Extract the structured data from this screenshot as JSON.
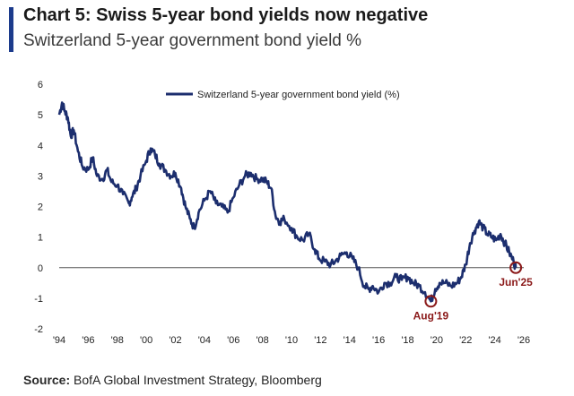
{
  "header": {
    "title": "Chart 5: Swiss 5-year bond yields now negative",
    "subtitle": "Switzerland 5-year government bond yield %"
  },
  "footer": {
    "source_label": "Source:",
    "source_text": " BofA Global Investment Strategy, Bloomberg"
  },
  "colors": {
    "accent": "#1c3b8c",
    "line": "#1c2e6e",
    "annotation": "#8b1a1a"
  },
  "chart_data": {
    "type": "line",
    "title": "Chart 5: Swiss 5-year bond yields now negative",
    "subtitle": "Switzerland 5-year government bond yield %",
    "xlabel": "",
    "ylabel": "",
    "xlim": [
      1994,
      2026
    ],
    "ylim": [
      -2,
      6
    ],
    "x_ticks": [
      "'94",
      "'96",
      "'98",
      "'00",
      "'02",
      "'04",
      "'06",
      "'08",
      "'10",
      "'12",
      "'14",
      "'16",
      "'18",
      "'20",
      "'22",
      "'24",
      "'26"
    ],
    "y_ticks": [
      "6",
      "5",
      "4",
      "3",
      "2",
      "1",
      "0",
      "-1",
      "-2"
    ],
    "legend": {
      "position": "top",
      "entries": [
        "Switzerland 5-year government bond yield (%)"
      ]
    },
    "series": [
      {
        "name": "Switzerland 5-year government bond yield (%)",
        "x": [
          1994.0,
          1994.2,
          1994.4,
          1994.6,
          1994.8,
          1995.0,
          1995.3,
          1995.6,
          1996.0,
          1996.3,
          1996.6,
          1997.0,
          1997.3,
          1997.6,
          1998.0,
          1998.4,
          1998.8,
          1999.0,
          1999.3,
          1999.6,
          2000.0,
          2000.3,
          2000.6,
          2000.9,
          2001.3,
          2001.7,
          2002.0,
          2002.4,
          2002.7,
          2003.0,
          2003.3,
          2003.6,
          2004.0,
          2004.4,
          2004.8,
          2005.2,
          2005.6,
          2006.0,
          2006.4,
          2006.8,
          2007.2,
          2007.6,
          2008.0,
          2008.3,
          2008.6,
          2008.9,
          2009.2,
          2009.5,
          2010.0,
          2010.4,
          2010.8,
          2011.2,
          2011.6,
          2011.9,
          2012.3,
          2012.7,
          2013.0,
          2013.4,
          2013.8,
          2014.2,
          2014.6,
          2015.0,
          2015.3,
          2015.6,
          2016.0,
          2016.4,
          2016.8,
          2017.2,
          2017.6,
          2018.0,
          2018.4,
          2018.8,
          2019.2,
          2019.6,
          2019.9,
          2020.2,
          2020.6,
          2021.0,
          2021.4,
          2021.7,
          2022.0,
          2022.3,
          2022.6,
          2022.9,
          2023.2,
          2023.5,
          2023.8,
          2024.1,
          2024.4,
          2024.7,
          2025.0,
          2025.3,
          2025.45
        ],
        "y": [
          5.0,
          5.4,
          5.1,
          4.9,
          4.3,
          4.5,
          3.8,
          3.3,
          3.2,
          3.6,
          3.0,
          2.9,
          3.2,
          2.8,
          2.7,
          2.4,
          2.1,
          2.3,
          2.6,
          3.0,
          3.5,
          3.9,
          3.7,
          3.4,
          3.2,
          3.0,
          3.1,
          2.6,
          2.0,
          1.6,
          1.3,
          1.8,
          2.2,
          2.5,
          2.1,
          2.0,
          1.8,
          2.3,
          2.7,
          3.0,
          3.1,
          2.9,
          2.9,
          2.8,
          2.6,
          1.7,
          1.5,
          1.6,
          1.3,
          1.0,
          0.9,
          1.1,
          0.6,
          0.3,
          0.2,
          0.1,
          0.2,
          0.4,
          0.5,
          0.3,
          0.0,
          -0.6,
          -0.7,
          -0.6,
          -0.8,
          -0.5,
          -0.5,
          -0.3,
          -0.4,
          -0.3,
          -0.5,
          -0.6,
          -0.8,
          -1.1,
          -0.7,
          -0.5,
          -0.5,
          -0.6,
          -0.5,
          -0.3,
          0.1,
          0.8,
          1.2,
          1.5,
          1.3,
          1.1,
          1.0,
          0.9,
          1.1,
          0.8,
          0.5,
          0.2,
          0.0
        ]
      }
    ],
    "annotations": [
      {
        "label": "Aug'19",
        "x": 2019.6,
        "y": -1.1
      },
      {
        "label": "Jun'25",
        "x": 2025.45,
        "y": 0.0
      }
    ]
  }
}
